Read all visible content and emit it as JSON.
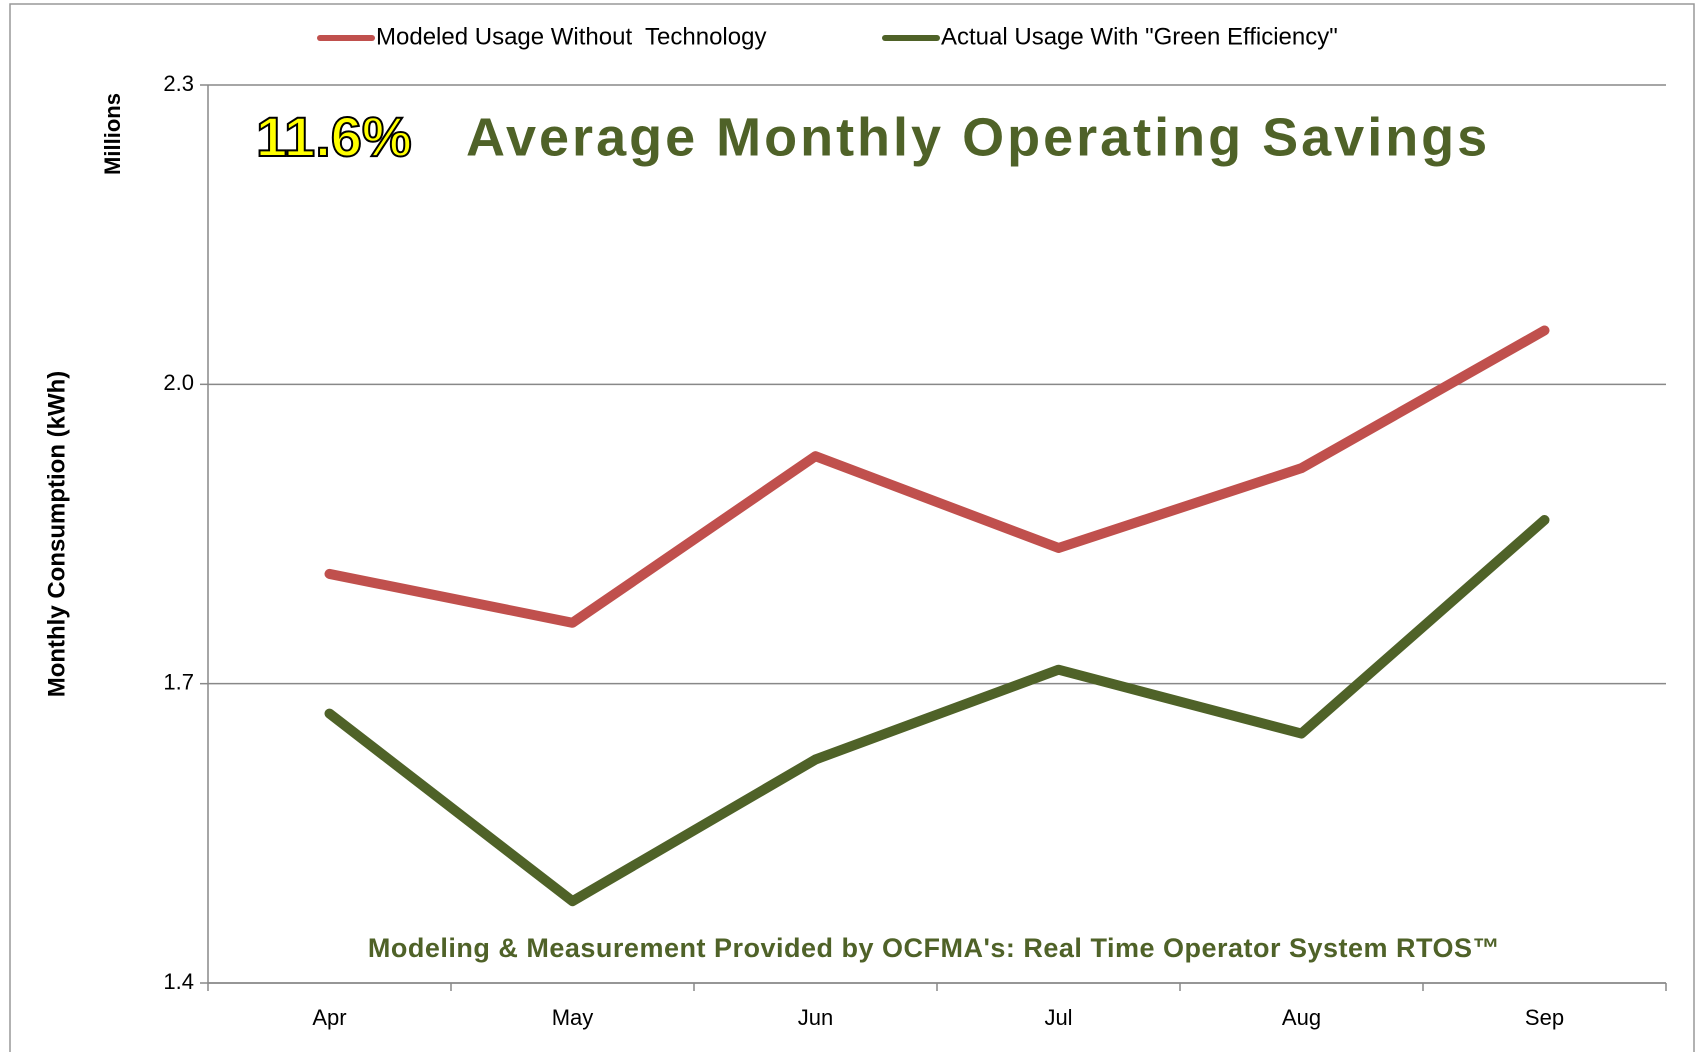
{
  "chart_data": {
    "type": "line",
    "highlight": "11.6%",
    "title": "Average Monthly Operating Savings",
    "footnote": "Modeling & Measurement Provided by OCFMA's: Real Time Operator System RTOS™",
    "ylabel": "Monthly Consumption (kWh)",
    "unit_label": "Millions",
    "categories": [
      "Apr",
      "May",
      "Jun",
      "Jul",
      "Aug",
      "Sep"
    ],
    "series": [
      {
        "name": "Modeled Usage Without  Technology",
        "color": "#c0504d",
        "values": [
          1.81,
          1.761,
          1.928,
          1.836,
          1.916,
          2.054
        ]
      },
      {
        "name": "Actual Usage With \"Green Efficiency\"",
        "color": "#4f6228",
        "values": [
          1.67,
          1.482,
          1.624,
          1.714,
          1.65,
          1.864
        ]
      }
    ],
    "ylim": [
      1.4,
      2.3
    ],
    "yticks": [
      1.4,
      1.7,
      {
        "value": 2,
        "label": "2.0"
      },
      2.3
    ],
    "grid": true,
    "legend": "top"
  }
}
